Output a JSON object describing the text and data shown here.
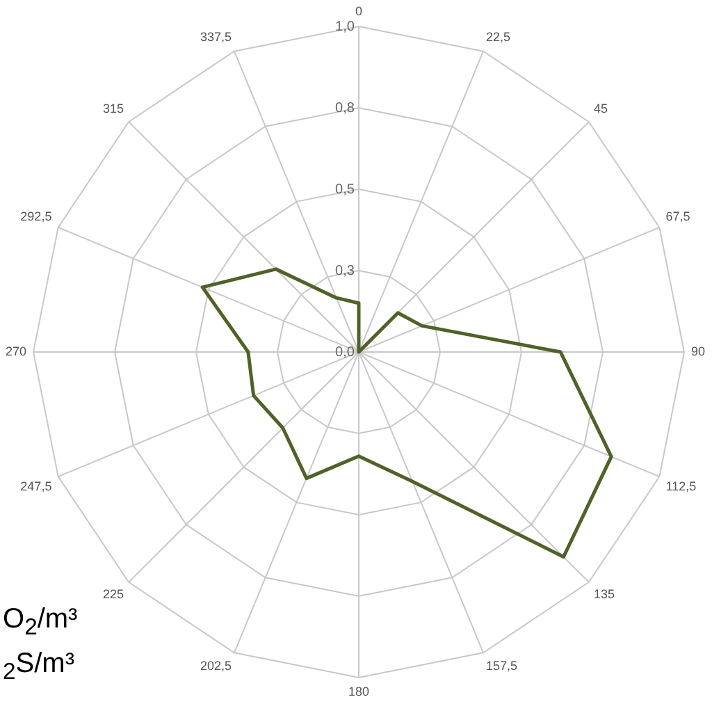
{
  "chart_data": {
    "type": "radar",
    "categories": [
      "0",
      "22,5",
      "45",
      "67,5",
      "90",
      "112,5",
      "135",
      "157,5",
      "180",
      "202,5",
      "225",
      "247,5",
      "270",
      "292,5",
      "315",
      "337,5"
    ],
    "series": [
      {
        "color": "#4f6228",
        "values": [
          0.15,
          0,
          0.17,
          0.21,
          0.62,
          0.84,
          0.89,
          0.43,
          0.32,
          0.42,
          0.33,
          0.35,
          0.34,
          0.52,
          0.36,
          0.18
        ]
      }
    ],
    "ylim": [
      0,
      1
    ],
    "yticks": [
      {
        "value": 0,
        "label": "0,0"
      },
      {
        "value": 0.25,
        "label": "0,3"
      },
      {
        "value": 0.5,
        "label": "0,5"
      },
      {
        "value": 0.75,
        "label": "0,8"
      },
      {
        "value": 1,
        "label": "1,0"
      }
    ],
    "grid": true,
    "legend": false,
    "marker": "none",
    "line_style": "solid",
    "annotations": [
      "O$_{2}$/m³",
      "$_{2}$S/m³"
    ]
  }
}
